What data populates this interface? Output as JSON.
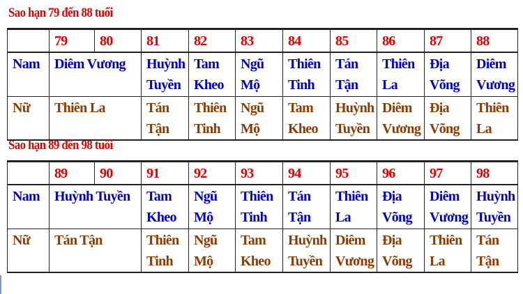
{
  "tables": [
    {
      "title": "Sao hạn 79 đến 88 tuổi",
      "ages": [
        "79",
        "80",
        "81",
        "82",
        "83",
        "84",
        "85",
        "86",
        "87",
        "88"
      ],
      "nam": {
        "label": "Nam",
        "merged": "Diêm Vương",
        "cells": [
          "Huỳnh Tuyền",
          "Tam Kheo",
          "Ngũ Mộ",
          "Thiên Tinh",
          "Tán Tận",
          "Thiên La",
          "Địa Võng",
          "Diêm Vương"
        ]
      },
      "nu": {
        "label": "Nữ",
        "merged": "Thiên La",
        "cells": [
          "Tán Tận",
          "Thiên Tinh",
          "Ngũ Mộ",
          "Tam Kheo",
          "Huỳnh Tuyền",
          "Diêm Vương",
          "Địa Võng",
          "Thiên La"
        ]
      }
    },
    {
      "title": "Sao hạn 89 đến 98 tuổi",
      "ages": [
        "89",
        "90",
        "91",
        "92",
        "93",
        "94",
        "95",
        "96",
        "97",
        "98"
      ],
      "nam": {
        "label": "Nam",
        "merged": "Huỳnh Tuyền",
        "cells": [
          "Tam Kheo",
          "Ngũ Mộ",
          "Thiên Tinh",
          "Tán Tận",
          "Thiên La",
          "Địa Võng",
          "Diêm Vương",
          "Huỳnh Tuyền"
        ]
      },
      "nu": {
        "label": "Nữ",
        "merged": "Tán Tận",
        "cells": [
          "Thiên Tinh",
          "Ngũ Mộ",
          "Tam Kheo",
          "Huỳnh Tuyền",
          "Diêm Vương",
          "Địa Võng",
          "Thiên La",
          "Tán Tận"
        ]
      }
    }
  ],
  "colors": {
    "age": "#e00000",
    "nam": "#0000c8",
    "nu": "#8b3a00"
  }
}
